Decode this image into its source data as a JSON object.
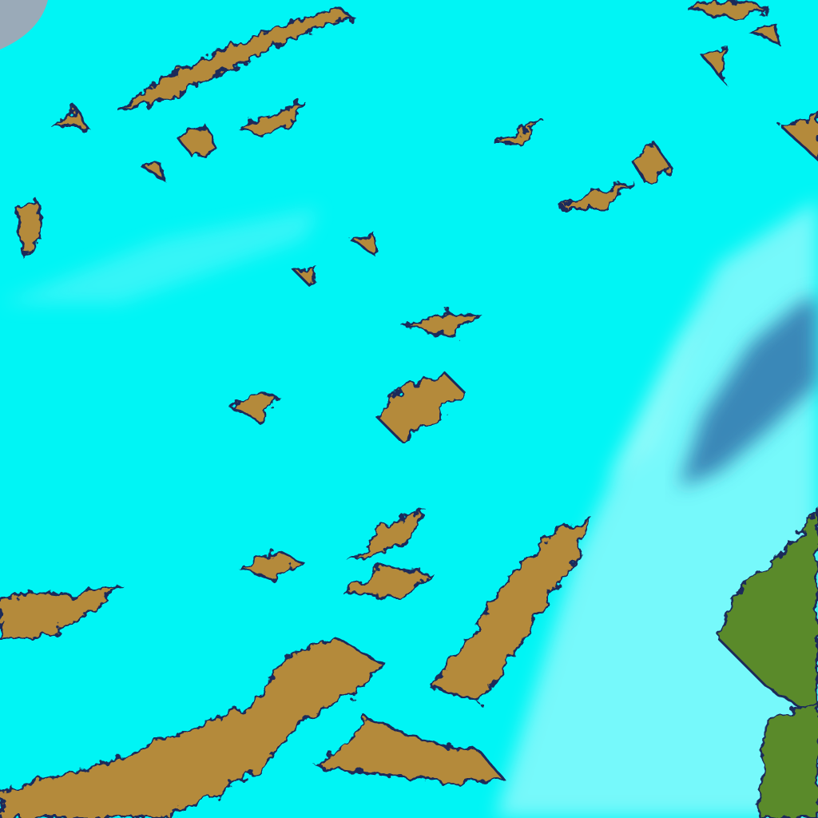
{
  "image": {
    "kind": "false-color satellite imagery",
    "colors": {
      "snow_cyan": "#00f5f5",
      "haze_white": "#d8fbff",
      "terrain_brown": "#b48a3a",
      "vegetation_green": "#5a8a2a",
      "shadow_dark": "#1a2a5a",
      "cloud_blue": "#2a6aa8",
      "corner_grey": "#9aaab8"
    }
  }
}
